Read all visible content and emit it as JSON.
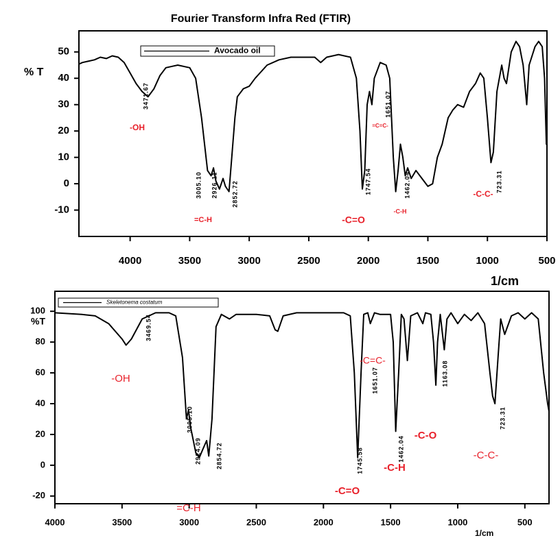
{
  "chart_data": [
    {
      "type": "line",
      "title": "Fourier Transform Infra Red (FTIR)",
      "x_label": "1/cm",
      "y_label": "% T",
      "xlim": [
        4430,
        500
      ],
      "ylim": [
        -20,
        58
      ],
      "xticks": [
        4000,
        3500,
        3000,
        2500,
        2000,
        1500,
        1000,
        500
      ],
      "yticks": [
        -10,
        0,
        10,
        20,
        30,
        40,
        50
      ],
      "x": [
        4500,
        4400,
        4300,
        4250,
        4200,
        4150,
        4100,
        4050,
        4000,
        3950,
        3900,
        3850,
        3800,
        3750,
        3700,
        3600,
        3500,
        3450,
        3400,
        3350,
        3320,
        3300,
        3280,
        3250,
        3220,
        3200,
        3170,
        3150,
        3120,
        3100,
        3050,
        3000,
        2950,
        2850,
        2750,
        2650,
        2550,
        2450,
        2400,
        2350,
        2250,
        2150,
        2100,
        2070,
        2050,
        2030,
        2010,
        1990,
        1970,
        1950,
        1900,
        1850,
        1820,
        1790,
        1770,
        1750,
        1730,
        1710,
        1690,
        1670,
        1640,
        1600,
        1550,
        1500,
        1460,
        1420,
        1380,
        1330,
        1290,
        1250,
        1200,
        1150,
        1100,
        1060,
        1030,
        1000,
        970,
        950,
        920,
        880,
        860,
        840,
        800,
        760,
        730,
        700,
        670,
        650,
        600,
        570,
        540,
        520,
        505,
        500
      ],
      "series": [
        {
          "name": "Avocado oil",
          "color": "#000000",
          "values": [
            44,
            46,
            47,
            48,
            47.5,
            48.5,
            48,
            46,
            42,
            38,
            35,
            33,
            36,
            41,
            44,
            45,
            44,
            40,
            25,
            5,
            3,
            6,
            1,
            -2,
            2,
            -1,
            -3,
            8,
            25,
            33,
            36,
            37,
            40,
            45,
            47,
            48,
            48,
            48,
            46,
            48,
            49,
            48,
            40,
            20,
            -2,
            5,
            30,
            35,
            30,
            40,
            46,
            45,
            40,
            10,
            -3,
            5,
            15,
            10,
            3,
            6,
            2,
            5,
            2,
            -1,
            0,
            10,
            15,
            25,
            28,
            30,
            29,
            35,
            38,
            42,
            40,
            25,
            8,
            12,
            35,
            45,
            40,
            38,
            50,
            54,
            52,
            45,
            30,
            45,
            52,
            54,
            52,
            40,
            15,
            22
          ]
        }
      ],
      "peak_labels": [
        "3471.67",
        "3005.10",
        "2926.11",
        "2852.72",
        "1747.54",
        "1651.07",
        "1462.04",
        "723.31"
      ],
      "group_labels": [
        "-OH",
        "=C-H",
        "=C=C-",
        "-C=O",
        "-C-H",
        "-C-C-"
      ],
      "group_label_color": "#e8202a"
    },
    {
      "type": "line",
      "x_label": "1/cm",
      "y_label": "%T",
      "xlim": [
        4000,
        320
      ],
      "ylim": [
        -25,
        113
      ],
      "xticks": [
        4000,
        3500,
        3000,
        2500,
        2000,
        1500,
        1000,
        500
      ],
      "yticks": [
        -20,
        0,
        20,
        40,
        60,
        80,
        100
      ],
      "x": [
        4000,
        3800,
        3700,
        3600,
        3500,
        3470,
        3430,
        3350,
        3250,
        3150,
        3100,
        3050,
        3020,
        3005,
        2990,
        2950,
        2924,
        2900,
        2870,
        2854,
        2830,
        2800,
        2760,
        2700,
        2650,
        2500,
        2400,
        2360,
        2340,
        2300,
        2200,
        2000,
        1850,
        1800,
        1770,
        1745,
        1720,
        1700,
        1670,
        1651,
        1620,
        1580,
        1500,
        1480,
        1462,
        1440,
        1420,
        1400,
        1375,
        1350,
        1300,
        1260,
        1240,
        1200,
        1180,
        1163,
        1150,
        1130,
        1100,
        1080,
        1050,
        1000,
        950,
        900,
        850,
        800,
        760,
        740,
        723,
        700,
        680,
        650,
        600,
        550,
        500,
        450,
        400,
        360,
        330,
        320
      ],
      "series": [
        {
          "name": "Skeletonema costatum",
          "color": "#000000",
          "values": [
            99,
            98,
            97,
            92,
            82,
            78,
            82,
            95,
            99,
            99,
            97,
            70,
            30,
            36,
            25,
            8,
            5,
            10,
            16,
            6,
            30,
            90,
            98,
            95,
            98,
            98,
            97,
            88,
            87,
            97,
            99,
            99,
            99,
            97,
            60,
            5,
            60,
            98,
            99,
            92,
            99,
            98,
            98,
            80,
            22,
            60,
            98,
            95,
            68,
            97,
            99,
            92,
            99,
            98,
            80,
            52,
            80,
            98,
            75,
            95,
            99,
            92,
            98,
            94,
            99,
            92,
            60,
            45,
            40,
            70,
            95,
            85,
            97,
            99,
            95,
            99,
            95,
            60,
            40,
            35
          ]
        }
      ],
      "peak_labels": [
        "3469.54",
        "3005.10",
        "2924.09",
        "2854.72",
        "1745.58",
        "1651.07",
        "1462.04",
        "1163.08",
        "723.31"
      ],
      "group_labels": [
        "-OH",
        "=C-H",
        "-C=C-",
        "-C=O",
        "-C-H",
        "-C-O",
        "-C-C-"
      ],
      "group_label_color": "#e8202a"
    }
  ]
}
